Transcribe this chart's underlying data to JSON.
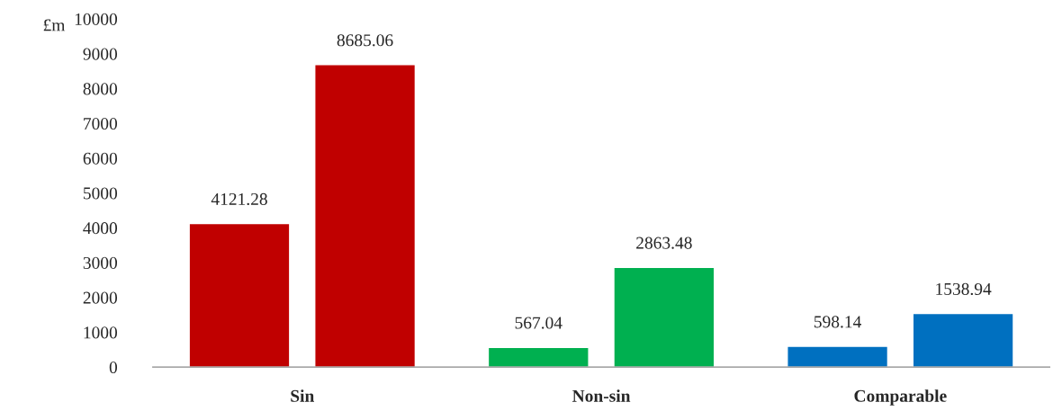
{
  "chart_data": {
    "type": "bar",
    "ylabel": "£m",
    "categories": [
      "Sin",
      "Non-sin",
      "Comparable"
    ],
    "series": [
      {
        "colors": [
          "#c00000",
          "#00b050",
          "#0070c0"
        ],
        "values": [
          4121.28,
          567.04,
          598.14
        ]
      },
      {
        "colors": [
          "#c00000",
          "#00b050",
          "#0070c0"
        ],
        "values": [
          8685.06,
          2863.48,
          1538.94
        ]
      }
    ],
    "ylim": [
      0,
      10000
    ],
    "yticks": [
      0,
      1000,
      2000,
      3000,
      4000,
      5000,
      6000,
      7000,
      8000,
      9000,
      10000
    ],
    "data_labels": true,
    "grid": false,
    "legend": false
  }
}
